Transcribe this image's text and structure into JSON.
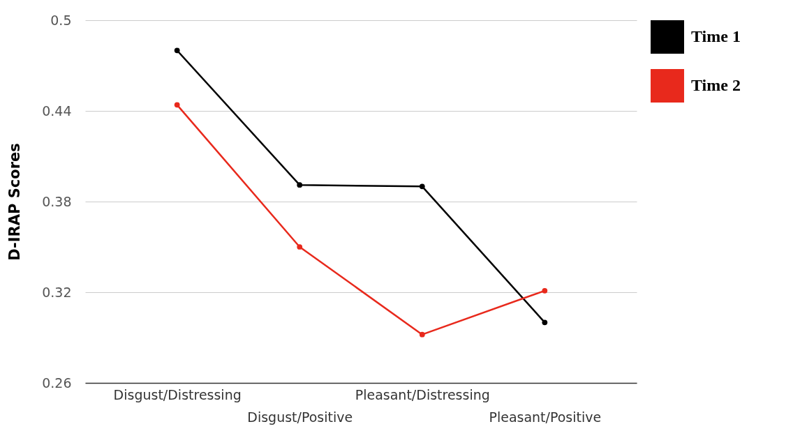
{
  "chart_data": {
    "type": "line",
    "ylabel": "D-IRAP Scores",
    "categories": [
      "Disgust/Distressing",
      "Disgust/Positive",
      "Pleasant/Distressing",
      "Pleasant/Positive"
    ],
    "series": [
      {
        "name": "Time 1",
        "color": "#000000",
        "values": [
          0.48,
          0.391,
          0.39,
          0.3
        ]
      },
      {
        "name": "Time 2",
        "color": "#e8291c",
        "values": [
          0.444,
          0.35,
          0.292,
          0.321
        ]
      }
    ],
    "ylim": [
      0.26,
      0.5
    ],
    "yticks": [
      0.26,
      0.32,
      0.38,
      0.44,
      0.5
    ],
    "grid": "y",
    "legend": "right",
    "marker": "circle",
    "line_style": "solid"
  }
}
